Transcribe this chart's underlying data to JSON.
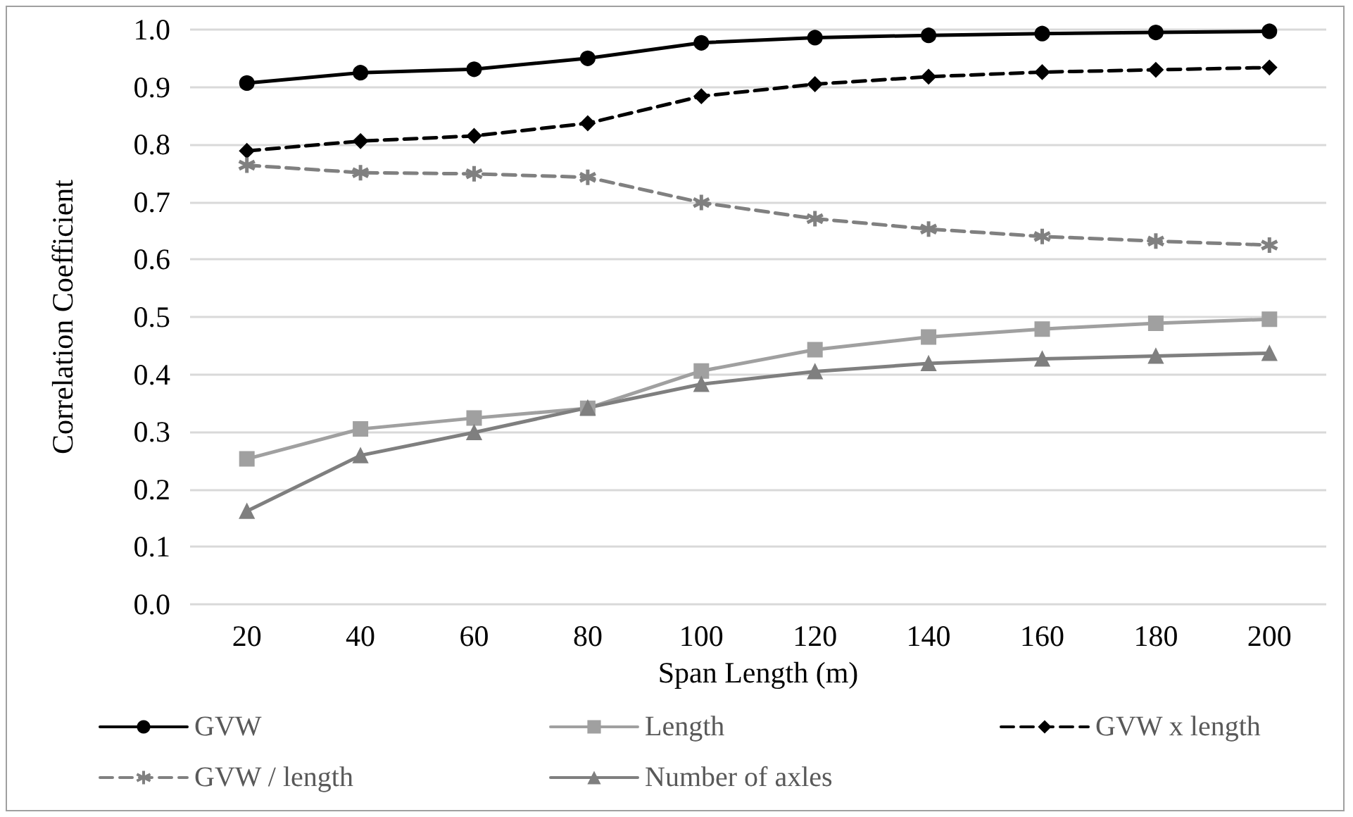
{
  "chart_data": {
    "type": "line",
    "xlabel": "Span Length (m)",
    "ylabel": "Correlation Coefficient",
    "categories": [
      "20",
      "40",
      "60",
      "80",
      "100",
      "120",
      "140",
      "160",
      "180",
      "200"
    ],
    "series": [
      {
        "name": "GVW",
        "color": "#000000",
        "marker": "circle",
        "line_style": "solid",
        "values": [
          0.907,
          0.925,
          0.931,
          0.95,
          0.977,
          0.986,
          0.99,
          0.993,
          0.995,
          0.997
        ]
      },
      {
        "name": "Length",
        "color": "#a0a0a0",
        "marker": "square",
        "line_style": "solid",
        "values": [
          0.253,
          0.305,
          0.324,
          0.341,
          0.406,
          0.443,
          0.465,
          0.479,
          0.489,
          0.496
        ]
      },
      {
        "name": "GVW x length",
        "color": "#000000",
        "marker": "diamond",
        "line_style": "dashed",
        "values": [
          0.789,
          0.806,
          0.815,
          0.837,
          0.884,
          0.905,
          0.918,
          0.926,
          0.93,
          0.934
        ]
      },
      {
        "name": "GVW / length",
        "color": "#808080",
        "marker": "cross",
        "line_style": "dashed",
        "values": [
          0.764,
          0.751,
          0.749,
          0.743,
          0.699,
          0.671,
          0.653,
          0.64,
          0.632,
          0.625
        ]
      },
      {
        "name": "Number of axles",
        "color": "#7f7f7f",
        "marker": "triangle",
        "line_style": "solid",
        "values": [
          0.162,
          0.259,
          0.299,
          0.342,
          0.383,
          0.405,
          0.419,
          0.427,
          0.432,
          0.437
        ]
      }
    ],
    "ylim": [
      0,
      1
    ],
    "yticks": [
      {
        "value": 0,
        "label": "0.0"
      },
      0.1,
      0.2,
      0.3,
      0.4,
      0.5,
      0.6,
      0.7,
      0.8,
      0.9,
      {
        "value": 1,
        "label": "1.0"
      }
    ],
    "grid": "y",
    "legend": "bottom"
  }
}
